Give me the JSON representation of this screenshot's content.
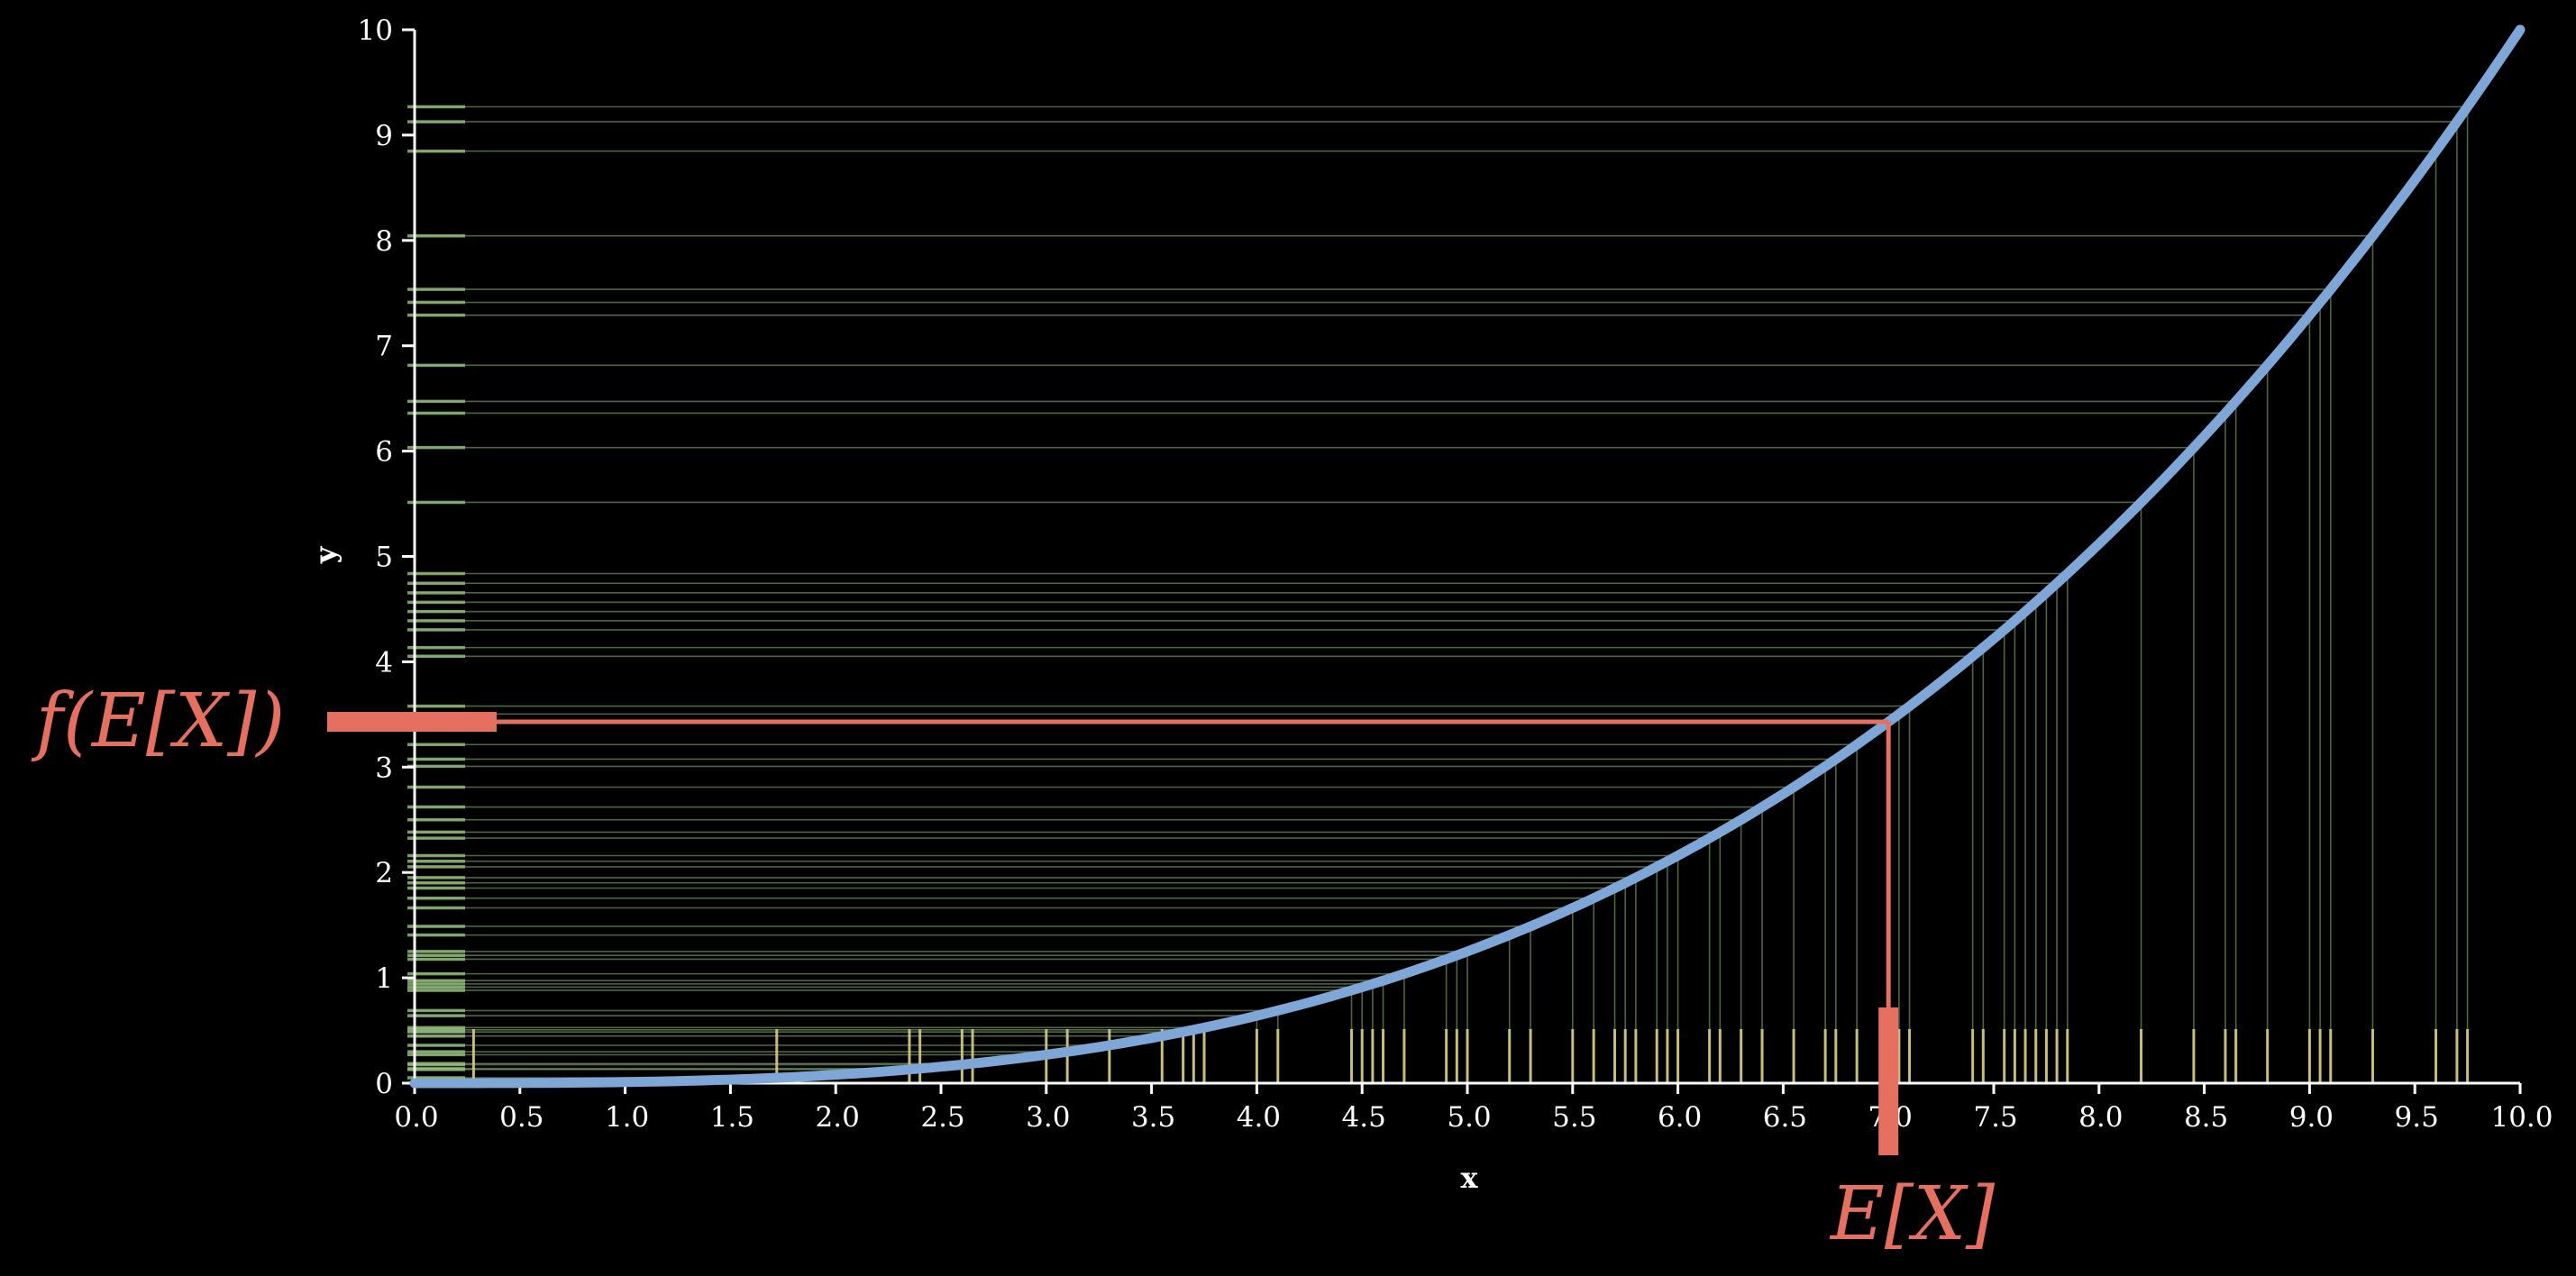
{
  "chart_data": {
    "type": "line",
    "title": "",
    "xlabel": "x",
    "ylabel": "y",
    "xlim": [
      0,
      10
    ],
    "ylim": [
      0,
      10
    ],
    "x_ticks": [
      "0.0",
      "0.5",
      "1.0",
      "1.5",
      "2.0",
      "2.5",
      "3.0",
      "3.5",
      "4.0",
      "4.5",
      "5.0",
      "5.5",
      "6.0",
      "6.5",
      "7.0",
      "7.5",
      "8.0",
      "8.5",
      "9.0",
      "9.5",
      "10.0"
    ],
    "y_ticks": [
      "0",
      "1",
      "2",
      "3",
      "4",
      "5",
      "6",
      "7",
      "8",
      "9",
      "10"
    ],
    "curve": {
      "function": "y = x^3 / 100",
      "color": "#7ea7d8"
    },
    "samples_x": [
      0.28,
      1.72,
      2.35,
      2.4,
      2.6,
      2.65,
      3.0,
      3.1,
      3.3,
      3.55,
      3.65,
      3.7,
      3.75,
      4.0,
      4.1,
      4.45,
      4.5,
      4.55,
      4.6,
      4.7,
      4.9,
      4.95,
      5.0,
      5.2,
      5.3,
      5.5,
      5.6,
      5.7,
      5.75,
      5.8,
      5.9,
      5.95,
      6.0,
      6.15,
      6.2,
      6.3,
      6.4,
      6.55,
      6.7,
      6.75,
      6.85,
      7.05,
      7.1,
      7.4,
      7.45,
      7.55,
      7.6,
      7.65,
      7.7,
      7.75,
      7.8,
      7.85,
      8.2,
      8.45,
      8.6,
      8.65,
      8.8,
      9.0,
      9.05,
      9.1,
      9.3,
      9.6,
      9.7,
      9.75
    ],
    "sample_color": "#cfc57f",
    "projection_color": "#8fb87a",
    "expected_x": 7.0,
    "f_of_expected": 3.43,
    "highlight_color": "#e5705f",
    "annotations": {
      "x_label": "E[X]",
      "y_label": "f(E[X])"
    }
  }
}
